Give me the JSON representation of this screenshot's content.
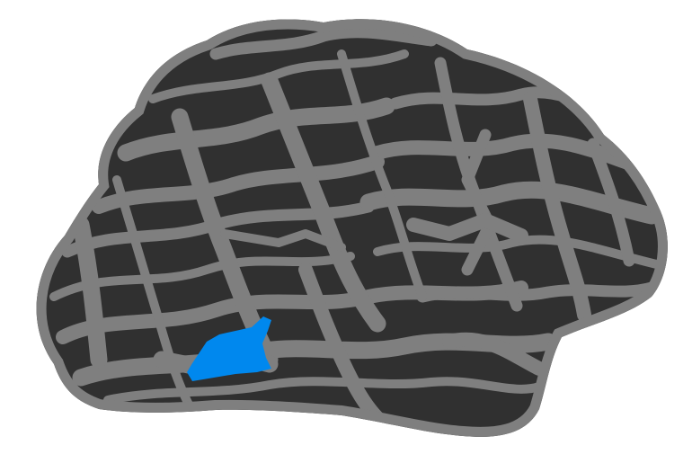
{
  "viewer": {
    "background_color": "#ffffff",
    "surface": {
      "view": "lateral",
      "gyri_color": "#7f7f7f",
      "sulci_color": "#303030"
    },
    "highlighted_region": {
      "color": "#0088ee"
    }
  }
}
